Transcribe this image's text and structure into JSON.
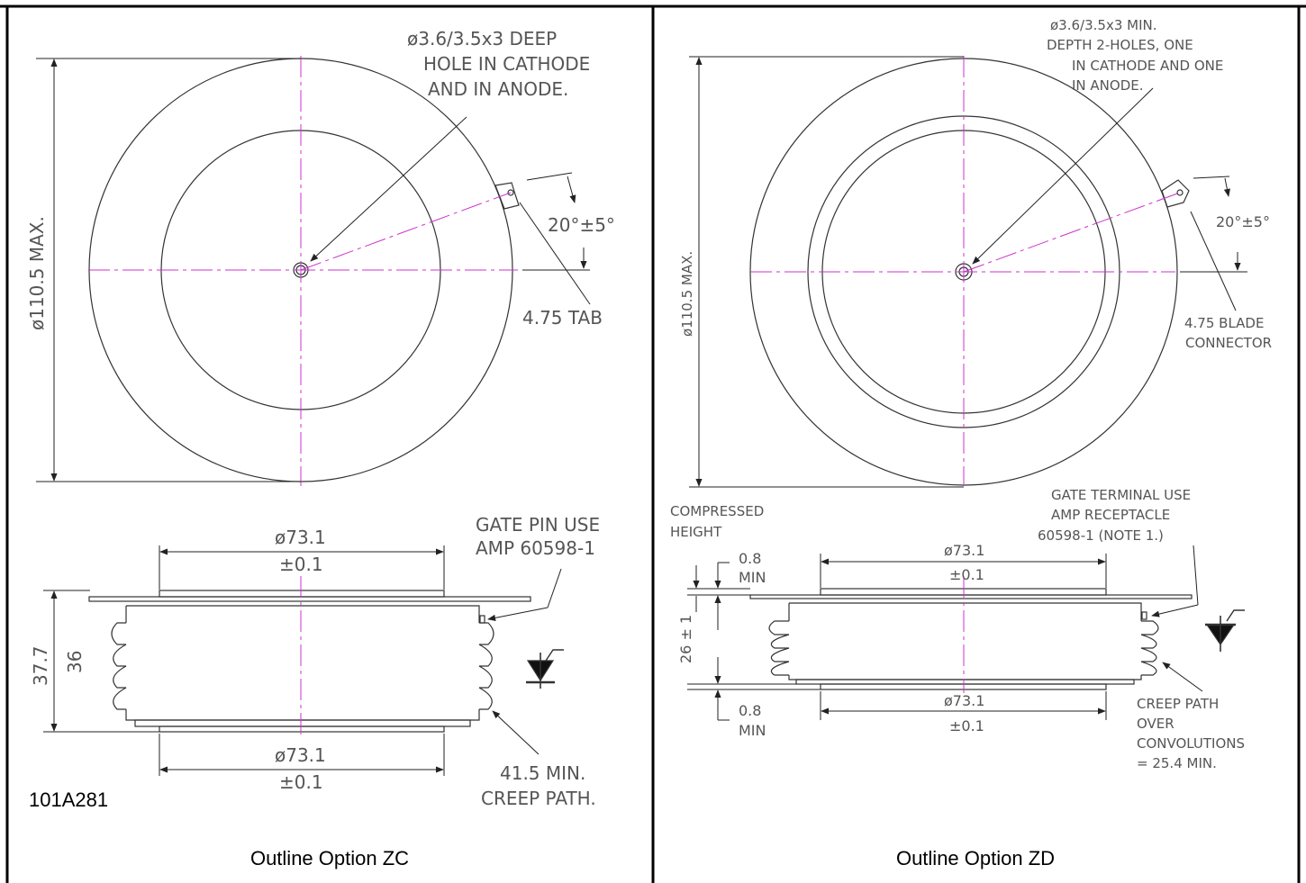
{
  "panels": [
    {
      "caption": "Outline Option ZC",
      "part_number": "101A281",
      "notes": {
        "hole_note": [
          "ø3.6/3.5x3 DEEP",
          "HOLE IN CATHODE",
          "AND IN ANODE."
        ],
        "angle": "20°±5°",
        "tab": "4.75 TAB",
        "diameter": "ø110.5 MAX.",
        "gate_pin": [
          "GATE PIN USE",
          "AMP 60598-1"
        ],
        "top_dia": [
          "ø73.1",
          "±0.1"
        ],
        "bottom_dia": [
          "ø73.1",
          "±0.1"
        ],
        "height_outer": "37.7",
        "height_inner": "36",
        "creep": [
          "41.5 MIN.",
          "CREEP PATH."
        ]
      }
    },
    {
      "caption": "Outline Option ZD",
      "notes": {
        "hole_note": [
          "ø3.6/3.5x3 MIN.",
          "DEPTH 2-HOLES, ONE",
          "IN CATHODE AND ONE",
          "IN ANODE."
        ],
        "angle": "20°±5°",
        "connector": [
          "4.75 BLADE",
          "CONNECTOR"
        ],
        "diameter": "ø110.5 MAX.",
        "compressed": [
          "COMPRESSED",
          "HEIGHT"
        ],
        "gate_terminal": [
          "GATE TERMINAL USE",
          "AMP RECEPTACLE",
          "60598-1 (NOTE 1.)"
        ],
        "top_dia": [
          "ø73.1",
          "±0.1"
        ],
        "bottom_dia": [
          "ø73.1",
          "±0.1"
        ],
        "min_top": [
          "0.8",
          "MIN"
        ],
        "min_bottom": [
          "0.8",
          "MIN"
        ],
        "height": "26 ± 1",
        "creep": [
          "CREEP PATH",
          "OVER",
          "CONVOLUTIONS",
          "= 25.4 MIN."
        ]
      }
    }
  ],
  "colors": {
    "outline": "#333333",
    "centerline": "#cc33cc",
    "frame": "#000000",
    "text": "#555555"
  }
}
